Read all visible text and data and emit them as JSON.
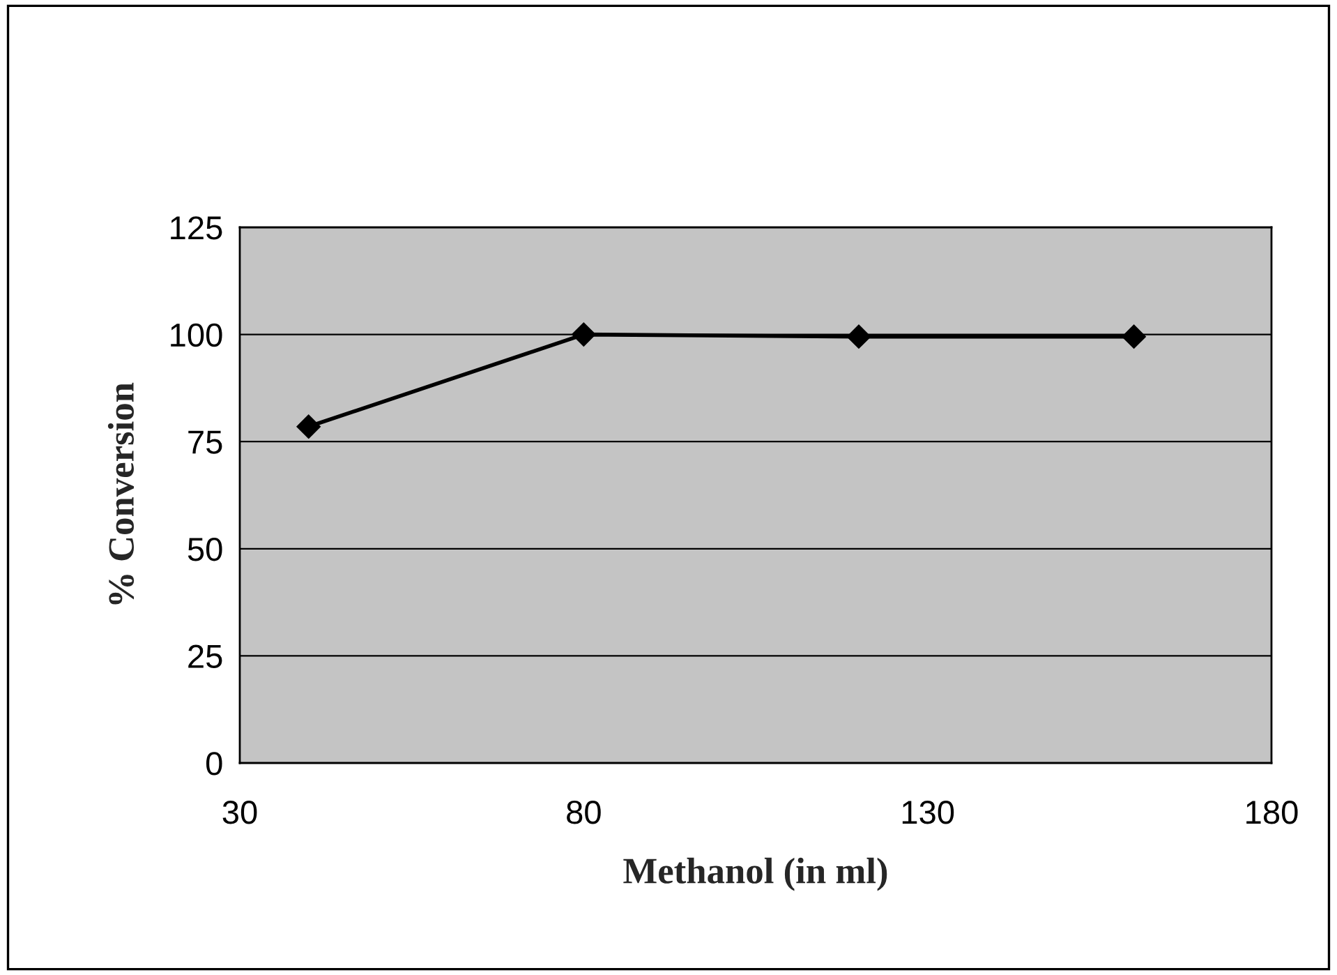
{
  "chart_data": {
    "type": "line",
    "xlabel": "Methanol (in ml)",
    "ylabel": "% Conversion",
    "x": [
      40,
      80,
      120,
      160
    ],
    "series": [
      {
        "color": "#000000",
        "values": [
          78.5,
          100,
          99.5,
          99.5
        ]
      }
    ],
    "xlim": [
      30,
      180
    ],
    "xticks": [
      30,
      80,
      130,
      180
    ],
    "ylim": [
      0,
      125
    ],
    "yticks": [
      0,
      25,
      50,
      75,
      100,
      125
    ],
    "grid": "y",
    "marker": "diamond",
    "line_style": "solid",
    "legend": false
  }
}
